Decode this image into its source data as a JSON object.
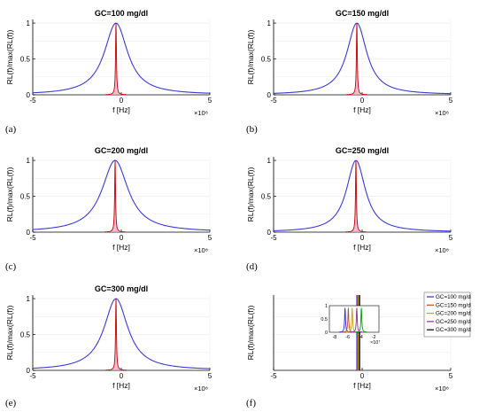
{
  "chart_data": [
    {
      "type": "line",
      "panel_label": "(a)",
      "title": "GC=100 mg/dl",
      "xlabel": "f [Hz]",
      "ylabel": "RL(f)/max(RL(f))",
      "x_exponent": "×10⁸",
      "xlim": [
        -5,
        5
      ],
      "ylim": [
        0,
        1.05
      ],
      "xticks": [
        "-5",
        "0",
        "5"
      ],
      "yticks": [
        "0",
        "0.5",
        "1"
      ],
      "grid": true,
      "series": [
        {
          "kind": "lorentzian",
          "color": "#3a3ad6",
          "center": -0.3,
          "width": 0.8
        },
        {
          "kind": "spike",
          "color": "#c00000",
          "fill": "#e9a0c4",
          "center": -0.3,
          "width": 0.03
        }
      ]
    },
    {
      "type": "line",
      "panel_label": "(b)",
      "title": "GC=150 mg/dl",
      "xlabel": "f [Hz]",
      "ylabel": "RL(f)/max(RL(f))",
      "x_exponent": "×10⁸",
      "xlim": [
        -5,
        5
      ],
      "ylim": [
        0,
        1.05
      ],
      "xticks": [
        "-5",
        "0",
        "5"
      ],
      "yticks": [
        "0",
        "0.5",
        "1"
      ],
      "grid": true,
      "series": [
        {
          "kind": "lorentzian",
          "color": "#3a3ad6",
          "center": -0.3,
          "width": 0.68
        },
        {
          "kind": "spike",
          "color": "#c00000",
          "fill": "#e9a0c4",
          "center": -0.3,
          "width": 0.03
        }
      ]
    },
    {
      "type": "line",
      "panel_label": "(c)",
      "title": "GC=200 mg/dl",
      "xlabel": "f [Hz]",
      "ylabel": "RL(f)/max(RL(f))",
      "x_exponent": "×10⁸",
      "xlim": [
        -5,
        5
      ],
      "ylim": [
        0,
        1.05
      ],
      "xticks": [
        "-5",
        "0",
        "5"
      ],
      "yticks": [
        "0",
        "0.5",
        "1"
      ],
      "grid": true,
      "series": [
        {
          "kind": "lorentzian",
          "color": "#3a3ad6",
          "center": -0.35,
          "width": 0.9
        },
        {
          "kind": "spike",
          "color": "#c00000",
          "fill": "#e9a0c4",
          "center": -0.35,
          "width": 0.03
        }
      ]
    },
    {
      "type": "line",
      "panel_label": "(d)",
      "title": "GC=250 mg/dl",
      "xlabel": "f [Hz]",
      "ylabel": "RL(f)/max(RL(f))",
      "x_exponent": "×10⁸",
      "xlim": [
        -5,
        5
      ],
      "ylim": [
        0,
        1.05
      ],
      "xticks": [
        "-5",
        "0",
        "5"
      ],
      "yticks": [
        "0",
        "0.5",
        "1"
      ],
      "grid": true,
      "series": [
        {
          "kind": "lorentzian",
          "color": "#3a3ad6",
          "center": -0.35,
          "width": 0.65
        },
        {
          "kind": "spike",
          "color": "#c00000",
          "fill": "#e9a0c4",
          "center": -0.35,
          "width": 0.03
        }
      ]
    },
    {
      "type": "line",
      "panel_label": "(e)",
      "title": "GC=300 mg/dl",
      "xlabel": "f [Hz]",
      "ylabel": "RL(f)/max(RL(f))",
      "x_exponent": "×10⁸",
      "xlim": [
        -5,
        5
      ],
      "ylim": [
        0,
        1.05
      ],
      "xticks": [
        "-5",
        "0",
        "5"
      ],
      "yticks": [
        "0",
        "0.5",
        "1"
      ],
      "grid": true,
      "series": [
        {
          "kind": "lorentzian",
          "color": "#3a3ad6",
          "center": -0.3,
          "width": 0.82
        },
        {
          "kind": "spike",
          "color": "#c00000",
          "fill": "#e9a0c4",
          "center": -0.3,
          "width": 0.03
        }
      ]
    },
    {
      "type": "line",
      "panel_label": "(f)",
      "title": "",
      "xlabel": "f [Hz]",
      "ylabel": "RL(f)/max(RL(f))",
      "x_exponent": "×10⁸",
      "xlim": [
        -5,
        5
      ],
      "ylim": [
        0,
        1.05
      ],
      "xticks": [
        "-5",
        "0",
        "5"
      ],
      "yticks": [],
      "grid": true,
      "legend_position": "top-right",
      "series": [
        {
          "name": "GC=100 mg/dl",
          "color": "#2b2bd6",
          "center": -0.3
        },
        {
          "name": "GC=150 mg/dl",
          "color": "#c05020",
          "center": -0.26
        },
        {
          "name": "GC=200 mg/dl",
          "color": "#c8a000",
          "center": -0.22
        },
        {
          "name": "GC=250 mg/dl",
          "color": "#8a2ca0",
          "center": -0.18
        },
        {
          "name": "GC=300 mg/dl",
          "color": "#000000",
          "center": -0.14
        }
      ],
      "inset": {
        "x_exponent": "×10⁷",
        "xticks": [
          "-8",
          "-6",
          "-4",
          "-2"
        ],
        "yticks": [
          "0",
          "0.5",
          "1"
        ],
        "peak_centers": [
          -6.4,
          -5.9,
          -5.3,
          -4.6,
          -3.9
        ],
        "colors": [
          "#2b2bd6",
          "#c05020",
          "#c8a000",
          "#8a2ca0",
          "#00a000"
        ]
      }
    }
  ]
}
